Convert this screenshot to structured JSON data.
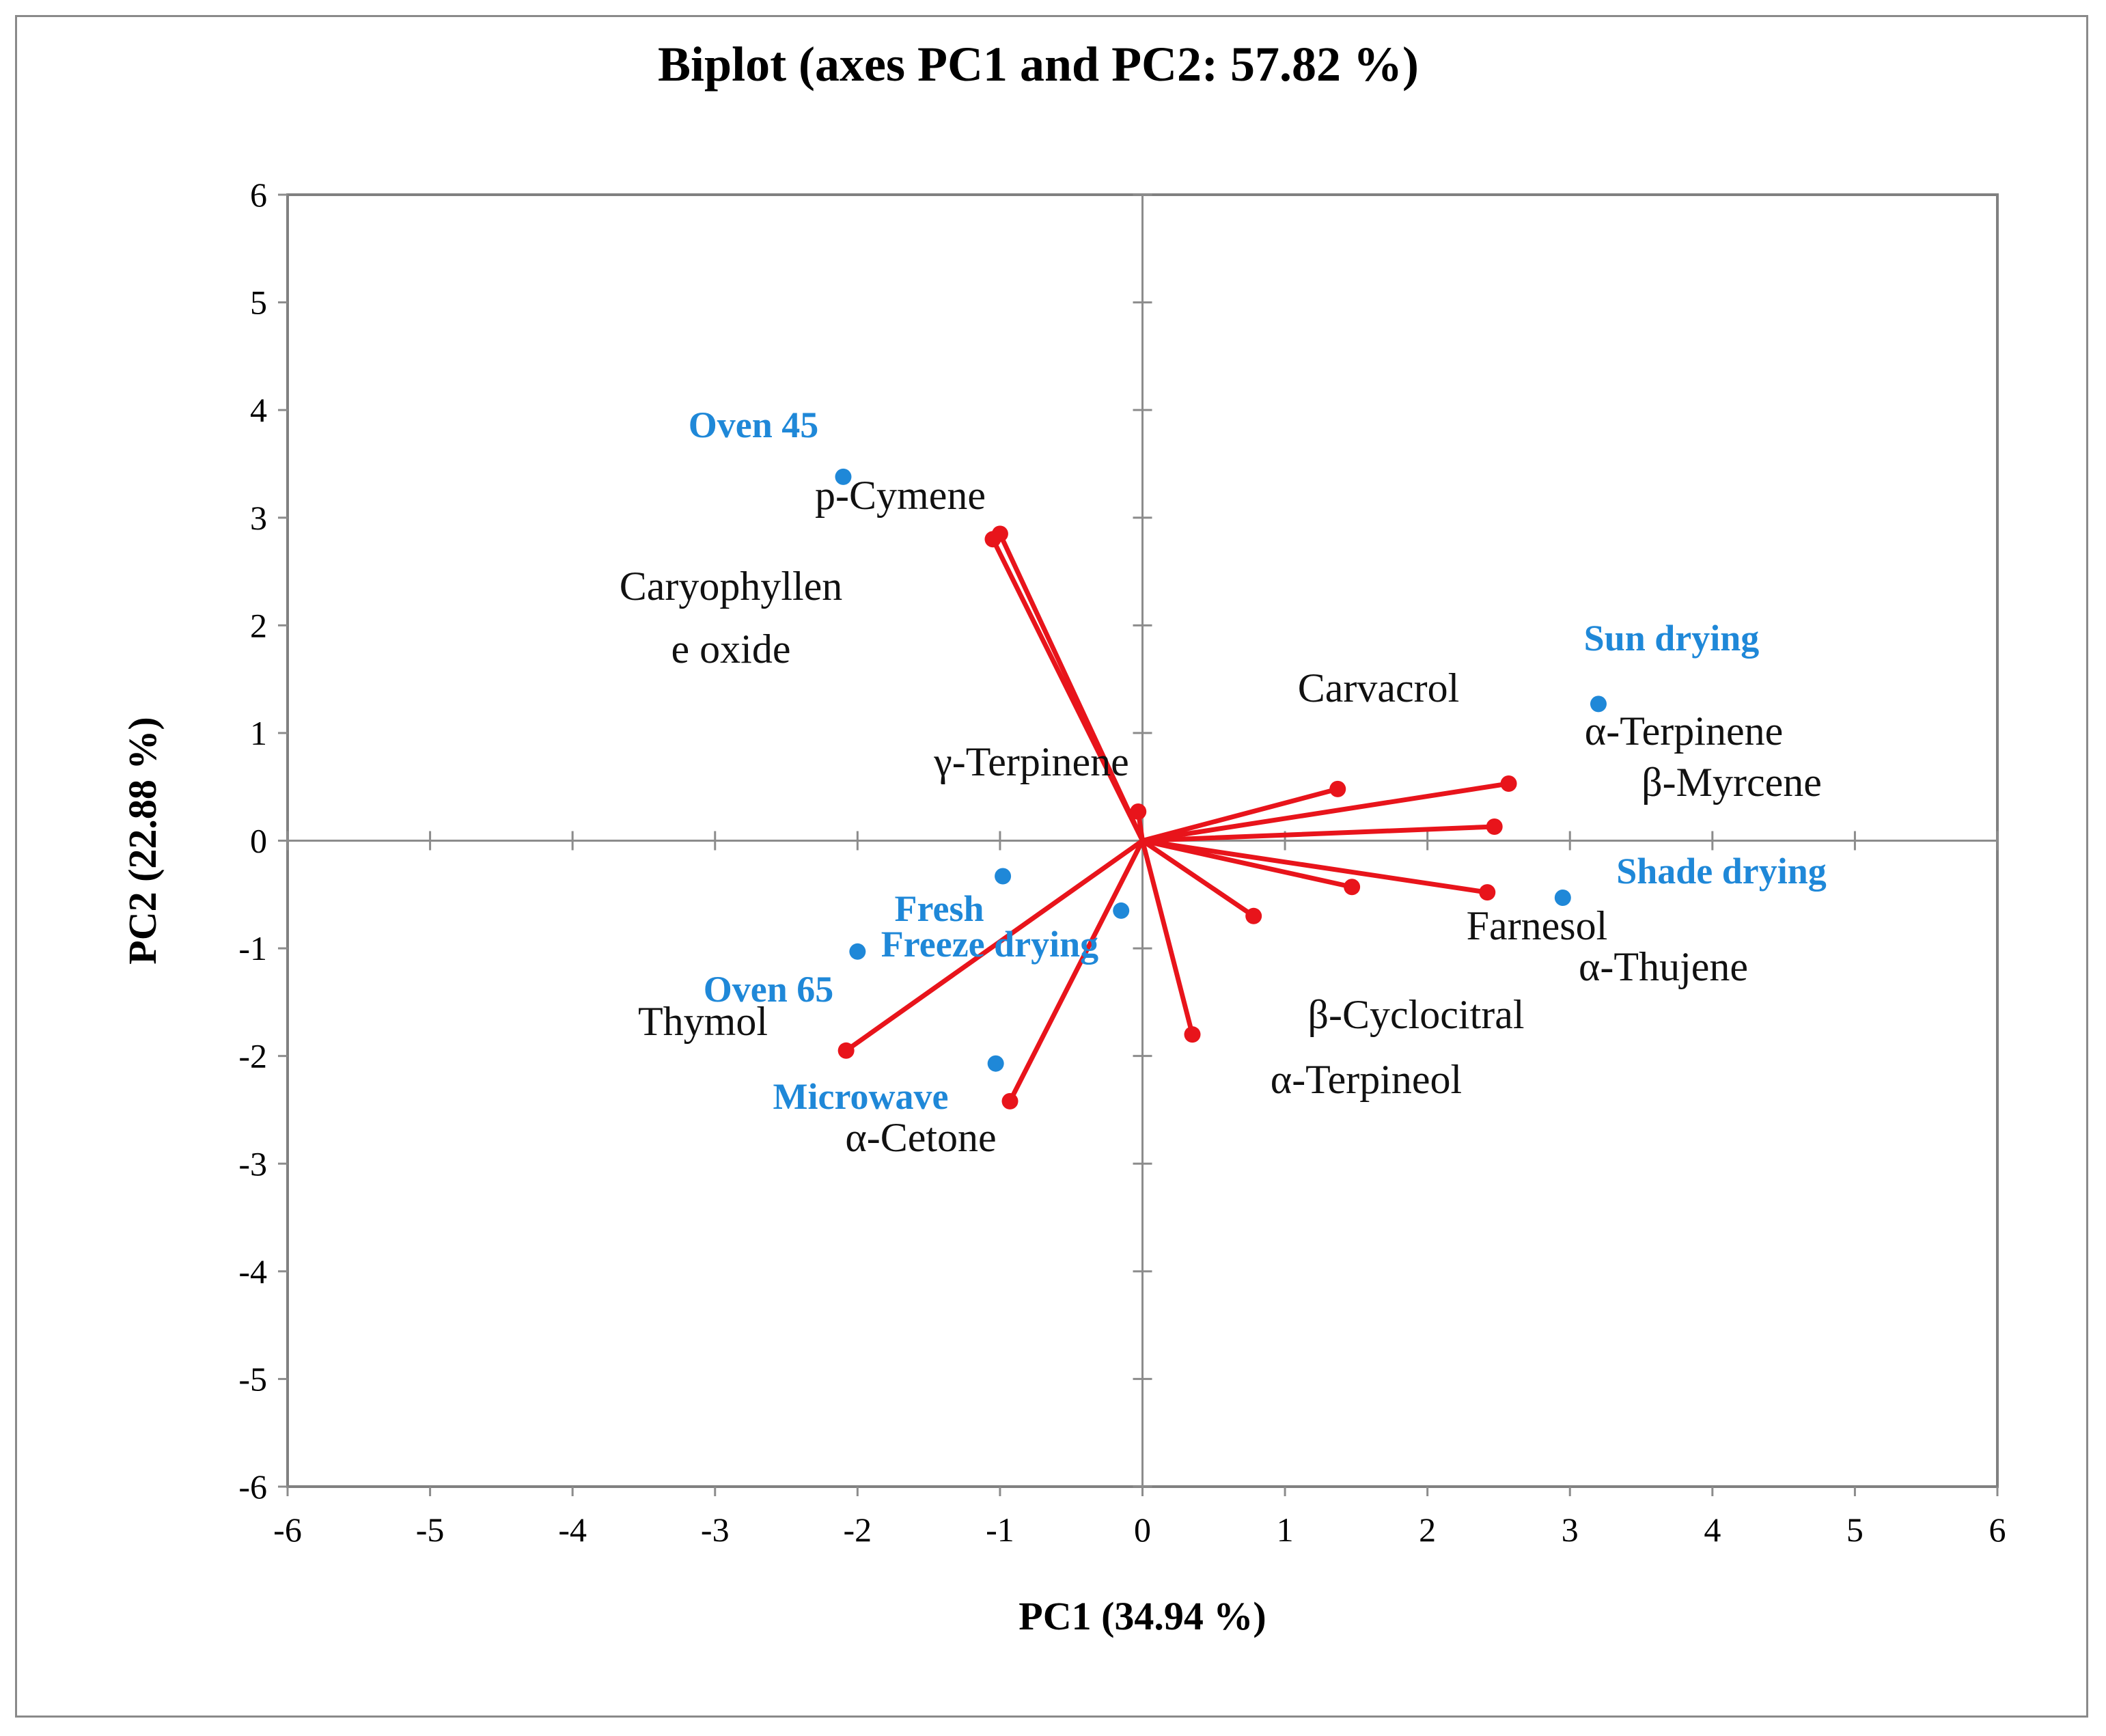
{
  "chart_data": {
    "type": "biplot",
    "title": "Biplot (axes PC1 and PC2: 57.82 %)",
    "xlabel": "PC1 (34.94 %)",
    "ylabel": "PC2 (22.88 %)",
    "xlim": [
      -6,
      6
    ],
    "ylim": [
      -6,
      6
    ],
    "xticks": [
      "-6",
      "-5",
      "-4",
      "-3",
      "-2",
      "-1",
      "0",
      "1",
      "2",
      "3",
      "4",
      "5",
      "6"
    ],
    "yticks": [
      "-6",
      "-5",
      "-4",
      "-3",
      "-2",
      "-1",
      "0",
      "1",
      "2",
      "3",
      "4",
      "5",
      "6"
    ],
    "variable_color": "#e8141b",
    "observation_color": "#1f88d8",
    "variables": [
      {
        "name": "p-Cymene",
        "x": -1.0,
        "y": 2.85
      },
      {
        "name": "Caryophyllene oxide",
        "x": -1.05,
        "y": 2.8
      },
      {
        "name": "γ-Terpinene",
        "x": -0.03,
        "y": 0.27
      },
      {
        "name": "Carvacrol",
        "x": 1.37,
        "y": 0.48
      },
      {
        "name": "α-Terpinene",
        "x": 2.57,
        "y": 0.53
      },
      {
        "name": "β-Myrcene",
        "x": 2.47,
        "y": 0.13
      },
      {
        "name": "Farnesol",
        "x": 1.47,
        "y": -0.43
      },
      {
        "name": "α-Thujene",
        "x": 2.42,
        "y": -0.48
      },
      {
        "name": "β-Cyclocitral",
        "x": 0.78,
        "y": -0.7
      },
      {
        "name": "α-Terpineol",
        "x": 0.35,
        "y": -1.8
      },
      {
        "name": "Thymol",
        "x": -2.08,
        "y": -1.95
      },
      {
        "name": "α-Cetone",
        "x": -0.93,
        "y": -2.42
      }
    ],
    "variable_labels": [
      {
        "text": "p-Cymene"
      },
      {
        "text": "Caryophyllen"
      },
      {
        "text": "e oxide"
      },
      {
        "text": "γ-Terpinene"
      },
      {
        "text": "Carvacrol"
      },
      {
        "text": "α-Terpinene"
      },
      {
        "text": "β-Myrcene"
      },
      {
        "text": "Farnesol"
      },
      {
        "text": "α-Thujene"
      },
      {
        "text": "β-Cyclocitral"
      },
      {
        "text": "α-Terpineol"
      },
      {
        "text": "Thymol"
      },
      {
        "text": "α-Cetone"
      }
    ],
    "observations": [
      {
        "name": "Oven 45",
        "x": -2.1,
        "y": 3.38
      },
      {
        "name": "Sun drying",
        "x": 3.2,
        "y": 1.27
      },
      {
        "name": "Shade drying",
        "x": 2.95,
        "y": -0.53
      },
      {
        "name": "Fresh",
        "x": -0.98,
        "y": -0.33
      },
      {
        "name": "Freeze drying",
        "x": -0.15,
        "y": -0.65
      },
      {
        "name": "Oven 65",
        "x": -2.0,
        "y": -1.03
      },
      {
        "name": "Microwave",
        "x": -1.03,
        "y": -2.07
      }
    ]
  }
}
